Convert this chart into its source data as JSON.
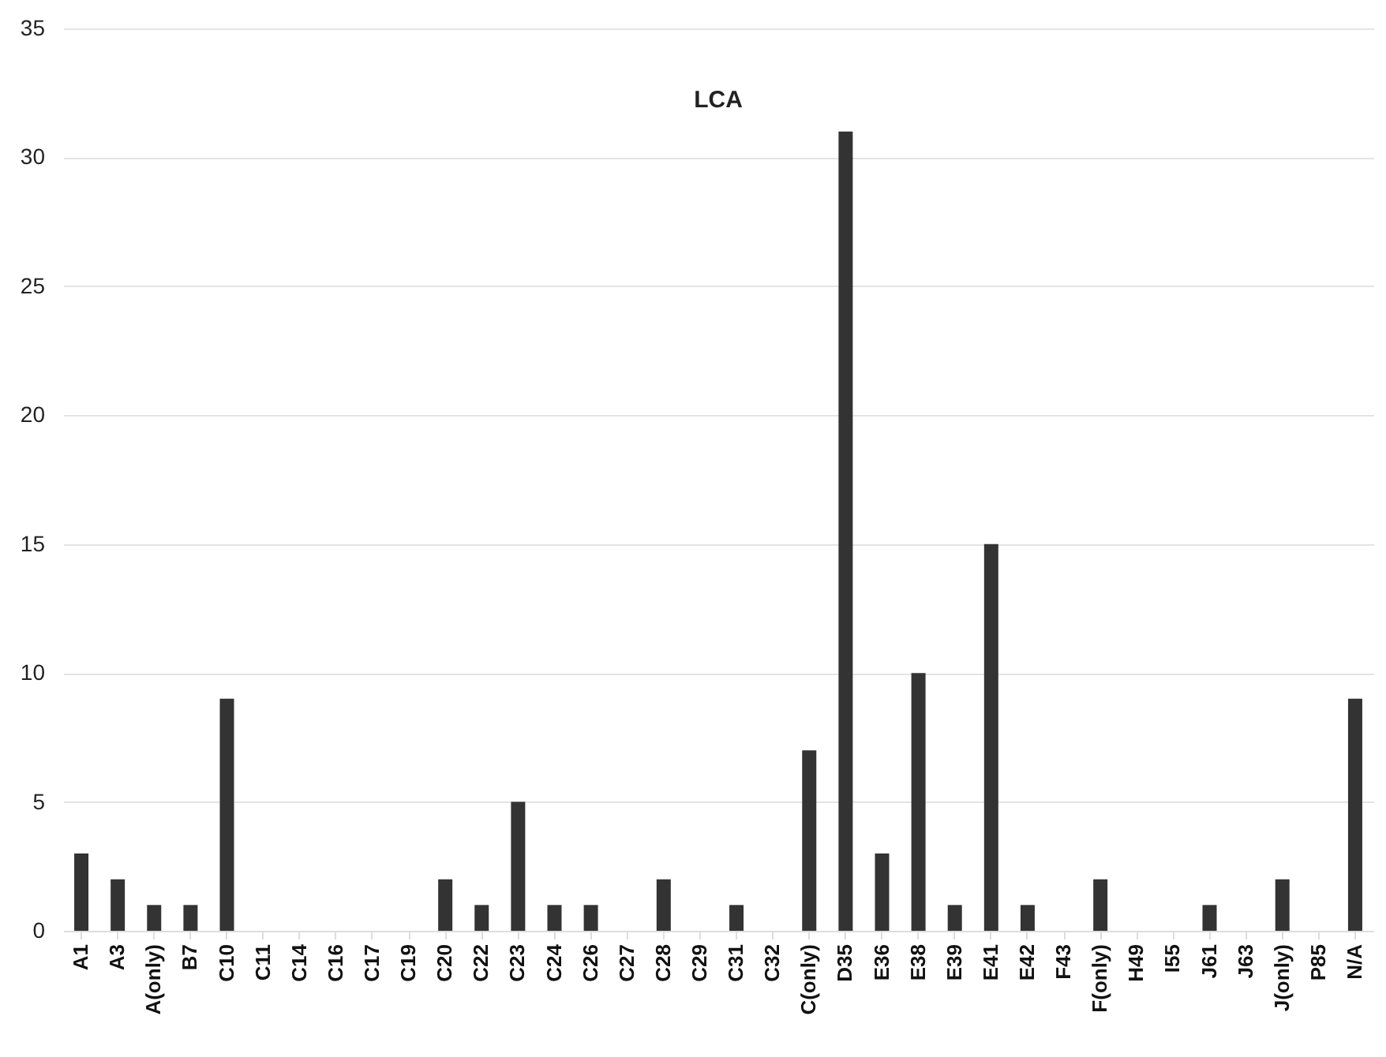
{
  "chart_data": {
    "type": "bar",
    "title": "LCA",
    "categories": [
      "A1",
      "A3",
      "A(only)",
      "B7",
      "C10",
      "C11",
      "C14",
      "C16",
      "C17",
      "C19",
      "C20",
      "C22",
      "C23",
      "C24",
      "C26",
      "C27",
      "C28",
      "C29",
      "C31",
      "C32",
      "C(only)",
      "D35",
      "E36",
      "E38",
      "E39",
      "E41",
      "E42",
      "F43",
      "F(only)",
      "H49",
      "I55",
      "J61",
      "J63",
      "J(only)",
      "P85",
      "N/A"
    ],
    "values": [
      3,
      2,
      1,
      1,
      9,
      0,
      0,
      0,
      0,
      0,
      2,
      1,
      5,
      1,
      1,
      0,
      2,
      0,
      1,
      0,
      7,
      31,
      3,
      10,
      1,
      15,
      1,
      0,
      2,
      0,
      0,
      1,
      0,
      2,
      0,
      9
    ],
    "color": "#333333",
    "ylim": [
      0,
      35
    ],
    "yticks": [
      0,
      5,
      10,
      15,
      20,
      25,
      30,
      35
    ],
    "grid": "y"
  }
}
